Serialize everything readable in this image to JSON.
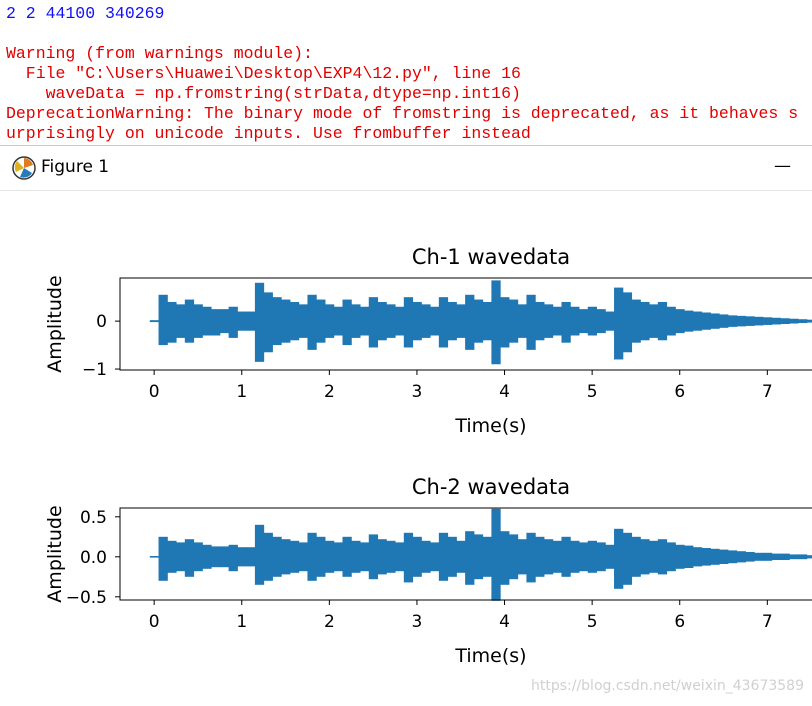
{
  "console": {
    "lines": [
      "2 2 44100 340269",
      "Warning (from warnings module):",
      "  File \"C:\\Users\\Huawei\\Desktop\\EXP4\\12.py\", line 16",
      "    waveData = np.fromstring(strData,dtype=np.int16)",
      "DeprecationWarning: The binary mode of fromstring is deprecated, as it behaves s",
      "urprisingly on unicode inputs. Use frombuffer instead"
    ]
  },
  "window": {
    "title": "Figure 1",
    "minimize": "—"
  },
  "watermark": "https://blog.csdn.net/weixin_43673589",
  "chart_data": [
    {
      "type": "envelope",
      "title": "Ch-1 wavedata",
      "x_label": "Time(s)",
      "y_label": "Amplitude",
      "color": "#1f77b4",
      "xlim": [
        -0.39,
        7.51
      ],
      "xticks": [
        0,
        1,
        2,
        3,
        4,
        5,
        6,
        7
      ],
      "ylim": [
        -1.02,
        0.9
      ],
      "yticks": [
        {
          "value": -1,
          "label": "−1"
        },
        0
      ],
      "x": [
        0.0,
        0.1,
        0.2,
        0.3,
        0.4,
        0.5,
        0.6,
        0.7,
        0.8,
        0.9,
        1.0,
        1.1,
        1.2,
        1.3,
        1.4,
        1.5,
        1.6,
        1.7,
        1.8,
        1.9,
        2.0,
        2.1,
        2.2,
        2.3,
        2.4,
        2.5,
        2.6,
        2.7,
        2.8,
        2.9,
        3.0,
        3.1,
        3.2,
        3.3,
        3.4,
        3.5,
        3.6,
        3.7,
        3.8,
        3.9,
        4.0,
        4.1,
        4.2,
        4.3,
        4.4,
        4.5,
        4.6,
        4.7,
        4.8,
        4.9,
        5.0,
        5.1,
        5.2,
        5.3,
        5.4,
        5.5,
        5.6,
        5.7,
        5.8,
        5.9,
        6.0,
        6.1,
        6.2,
        6.3,
        6.4,
        6.5,
        6.6,
        6.7,
        6.8,
        6.9,
        7.0,
        7.1,
        7.2,
        7.3,
        7.4,
        7.5
      ],
      "high": [
        0.02,
        0.55,
        0.4,
        0.35,
        0.45,
        0.35,
        0.3,
        0.25,
        0.25,
        0.3,
        0.2,
        0.2,
        0.8,
        0.6,
        0.5,
        0.45,
        0.4,
        0.35,
        0.55,
        0.45,
        0.35,
        0.3,
        0.45,
        0.35,
        0.3,
        0.5,
        0.4,
        0.35,
        0.3,
        0.5,
        0.4,
        0.35,
        0.3,
        0.5,
        0.4,
        0.35,
        0.55,
        0.45,
        0.4,
        0.85,
        0.5,
        0.45,
        0.35,
        0.55,
        0.4,
        0.35,
        0.3,
        0.4,
        0.3,
        0.25,
        0.3,
        0.25,
        0.2,
        0.7,
        0.6,
        0.45,
        0.4,
        0.35,
        0.4,
        0.3,
        0.25,
        0.22,
        0.2,
        0.18,
        0.16,
        0.14,
        0.12,
        0.11,
        0.1,
        0.09,
        0.08,
        0.07,
        0.06,
        0.05,
        0.04,
        0.03
      ],
      "low": [
        -0.02,
        -0.5,
        -0.45,
        -0.35,
        -0.45,
        -0.35,
        -0.3,
        -0.3,
        -0.25,
        -0.35,
        -0.2,
        -0.2,
        -0.85,
        -0.65,
        -0.5,
        -0.45,
        -0.4,
        -0.35,
        -0.6,
        -0.45,
        -0.35,
        -0.3,
        -0.5,
        -0.35,
        -0.3,
        -0.55,
        -0.4,
        -0.35,
        -0.3,
        -0.55,
        -0.4,
        -0.35,
        -0.3,
        -0.55,
        -0.4,
        -0.35,
        -0.6,
        -0.45,
        -0.4,
        -0.9,
        -0.55,
        -0.45,
        -0.35,
        -0.6,
        -0.4,
        -0.35,
        -0.3,
        -0.45,
        -0.3,
        -0.25,
        -0.3,
        -0.25,
        -0.2,
        -0.8,
        -0.65,
        -0.45,
        -0.4,
        -0.35,
        -0.4,
        -0.3,
        -0.25,
        -0.22,
        -0.2,
        -0.18,
        -0.16,
        -0.14,
        -0.12,
        -0.11,
        -0.1,
        -0.09,
        -0.08,
        -0.07,
        -0.06,
        -0.05,
        -0.04,
        -0.03
      ]
    },
    {
      "type": "envelope",
      "title": "Ch-2 wavedata",
      "x_label": "Time(s)",
      "y_label": "Amplitude",
      "color": "#1f77b4",
      "xlim": [
        -0.39,
        7.51
      ],
      "xticks": [
        0,
        1,
        2,
        3,
        4,
        5,
        6,
        7
      ],
      "ylim": [
        -0.54,
        0.61
      ],
      "yticks": [
        {
          "value": -0.5,
          "label": "−0.5"
        },
        {
          "value": 0,
          "label": "0.0"
        },
        0.5
      ],
      "x": [
        0.0,
        0.1,
        0.2,
        0.3,
        0.4,
        0.5,
        0.6,
        0.7,
        0.8,
        0.9,
        1.0,
        1.1,
        1.2,
        1.3,
        1.4,
        1.5,
        1.6,
        1.7,
        1.8,
        1.9,
        2.0,
        2.1,
        2.2,
        2.3,
        2.4,
        2.5,
        2.6,
        2.7,
        2.8,
        2.9,
        3.0,
        3.1,
        3.2,
        3.3,
        3.4,
        3.5,
        3.6,
        3.7,
        3.8,
        3.9,
        4.0,
        4.1,
        4.2,
        4.3,
        4.4,
        4.5,
        4.6,
        4.7,
        4.8,
        4.9,
        5.0,
        5.1,
        5.2,
        5.3,
        5.4,
        5.5,
        5.6,
        5.7,
        5.8,
        5.9,
        6.0,
        6.1,
        6.2,
        6.3,
        6.4,
        6.5,
        6.6,
        6.7,
        6.8,
        6.9,
        7.0,
        7.1,
        7.2,
        7.3,
        7.4,
        7.5
      ],
      "high": [
        0.01,
        0.25,
        0.2,
        0.18,
        0.22,
        0.18,
        0.15,
        0.13,
        0.13,
        0.15,
        0.12,
        0.12,
        0.4,
        0.3,
        0.25,
        0.22,
        0.2,
        0.18,
        0.3,
        0.25,
        0.2,
        0.18,
        0.25,
        0.2,
        0.18,
        0.28,
        0.22,
        0.2,
        0.18,
        0.3,
        0.25,
        0.2,
        0.18,
        0.3,
        0.25,
        0.2,
        0.32,
        0.28,
        0.25,
        0.6,
        0.32,
        0.28,
        0.22,
        0.3,
        0.25,
        0.22,
        0.2,
        0.25,
        0.2,
        0.18,
        0.2,
        0.18,
        0.15,
        0.35,
        0.3,
        0.25,
        0.22,
        0.2,
        0.22,
        0.18,
        0.15,
        0.14,
        0.12,
        0.11,
        0.1,
        0.09,
        0.08,
        0.07,
        0.06,
        0.05,
        0.05,
        0.04,
        0.04,
        0.03,
        0.03,
        0.02
      ],
      "low": [
        -0.01,
        -0.3,
        -0.2,
        -0.18,
        -0.25,
        -0.18,
        -0.15,
        -0.13,
        -0.13,
        -0.18,
        -0.12,
        -0.12,
        -0.35,
        -0.3,
        -0.25,
        -0.22,
        -0.2,
        -0.18,
        -0.3,
        -0.25,
        -0.2,
        -0.18,
        -0.25,
        -0.2,
        -0.18,
        -0.28,
        -0.22,
        -0.2,
        -0.18,
        -0.32,
        -0.25,
        -0.2,
        -0.18,
        -0.3,
        -0.25,
        -0.2,
        -0.35,
        -0.28,
        -0.25,
        -0.55,
        -0.35,
        -0.28,
        -0.22,
        -0.32,
        -0.25,
        -0.22,
        -0.2,
        -0.25,
        -0.2,
        -0.18,
        -0.2,
        -0.18,
        -0.15,
        -0.4,
        -0.35,
        -0.25,
        -0.22,
        -0.2,
        -0.22,
        -0.18,
        -0.15,
        -0.14,
        -0.12,
        -0.11,
        -0.1,
        -0.09,
        -0.08,
        -0.07,
        -0.06,
        -0.05,
        -0.05,
        -0.04,
        -0.04,
        -0.03,
        -0.03,
        -0.02
      ]
    }
  ]
}
